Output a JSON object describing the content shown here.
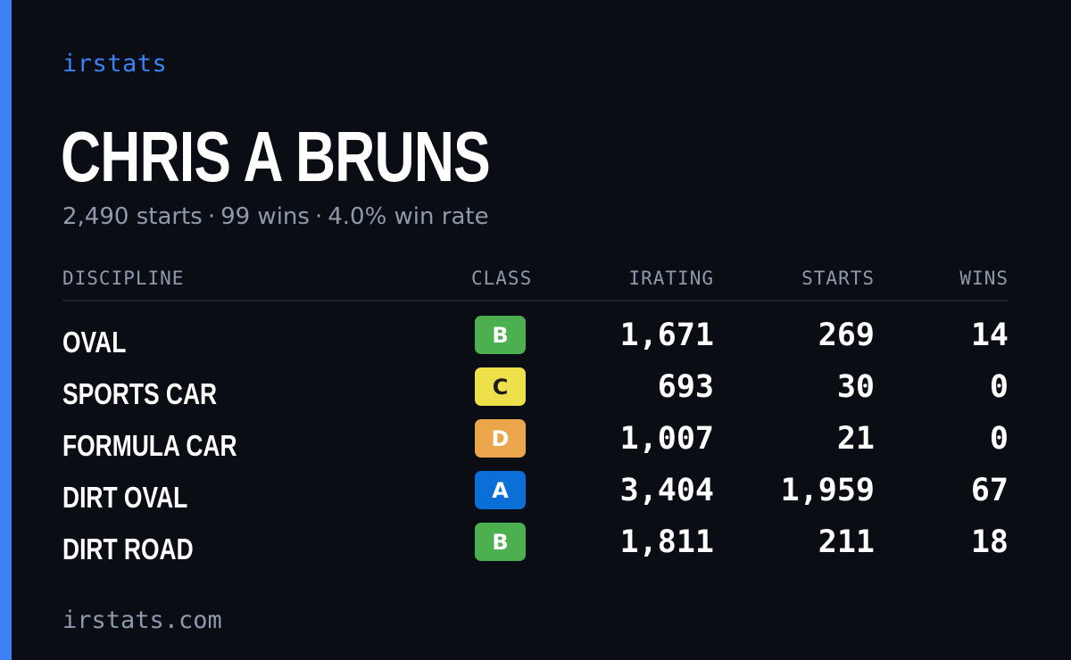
{
  "brand": "irstats",
  "driver": {
    "name": "CHRIS A BRUNS"
  },
  "summary": {
    "starts": "2,490 starts",
    "wins": "99 wins",
    "win_rate": "4.0% win rate",
    "separator": "·"
  },
  "table": {
    "headers": {
      "discipline": "DISCIPLINE",
      "class": "CLASS",
      "irating": "IRATING",
      "starts": "STARTS",
      "wins": "WINS"
    },
    "rows": [
      {
        "discipline": "OVAL",
        "class": "B",
        "class_bg": "#4caf50",
        "class_fg": "#ffffff",
        "irating": "1,671",
        "starts": "269",
        "wins": "14"
      },
      {
        "discipline": "SPORTS CAR",
        "class": "C",
        "class_bg": "#ede04a",
        "class_fg": "#1a1a1a",
        "irating": "693",
        "starts": "30",
        "wins": "0"
      },
      {
        "discipline": "FORMULA CAR",
        "class": "D",
        "class_bg": "#eba54a",
        "class_fg": "#ffffff",
        "irating": "1,007",
        "starts": "21",
        "wins": "0"
      },
      {
        "discipline": "DIRT OVAL",
        "class": "A",
        "class_bg": "#0b6fd8",
        "class_fg": "#ffffff",
        "irating": "3,404",
        "starts": "1,959",
        "wins": "67"
      },
      {
        "discipline": "DIRT ROAD",
        "class": "B",
        "class_bg": "#4caf50",
        "class_fg": "#ffffff",
        "irating": "1,811",
        "starts": "211",
        "wins": "18"
      }
    ]
  },
  "footer": {
    "url": "irstats.com"
  },
  "colors": {
    "accent": "#3b82f6",
    "background": "#0a0d14",
    "muted_text": "#8e9aac"
  }
}
